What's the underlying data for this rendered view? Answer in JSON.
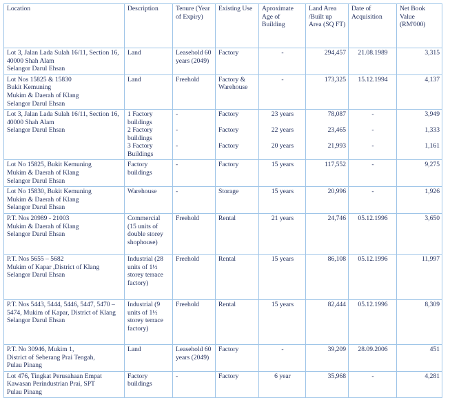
{
  "columns": [
    "Location",
    "Description",
    "Tenure (Year of Expiry)",
    "Existing Use",
    "Aproximate Age of Building",
    "Land Area /Built up Area (SQ FT)",
    "Date of Acquisition",
    "Net Book Value (RM'000)"
  ],
  "rows": [
    {
      "location": "Lot 3, Jalan Lada Sulah 16/11, Section 16, 40000 Shah Alam\nSelangor Darul Ehsan",
      "description": [
        "Land"
      ],
      "tenure": [
        "Leasehold 60 years (2049)"
      ],
      "use": [
        "Factory"
      ],
      "age": [
        "-"
      ],
      "area": [
        "294,457"
      ],
      "date": [
        "21.08.1989"
      ],
      "nbv": [
        "3,315"
      ]
    },
    {
      "location": "Lot Nos 15825 & 15830\nBukit Kemuning\nMukim & Daerah of Klang\nSelangor Darul Ehsan",
      "description": [
        "Land"
      ],
      "tenure": [
        "Freehold"
      ],
      "use": [
        "Factory & Warehouse"
      ],
      "age": [
        "-"
      ],
      "area": [
        "173,325"
      ],
      "date": [
        "15.12.1994"
      ],
      "nbv": [
        "4,137"
      ]
    },
    {
      "location": "Lot 3, Jalan Lada Sulah 16/11, Section 16, 40000 Shah Alam\nSelangor Darul Ehsan",
      "description": [
        "1 Factory buildings",
        "2 Factory buildings",
        "3 Factory Buildings"
      ],
      "tenure": [
        "-",
        "-",
        "-"
      ],
      "use": [
        "Factory",
        "Factory",
        "Factory"
      ],
      "age": [
        "23 years",
        "22 years",
        "20 years"
      ],
      "area": [
        "78,087",
        "23,465",
        "21,993"
      ],
      "date": [
        "-",
        "-",
        "-"
      ],
      "nbv": [
        "3,949",
        "1,333",
        "1,161"
      ]
    },
    {
      "location": "Lot No 15825, Bukit Kemuning\nMukim & Daerah of Klang\nSelangor Darul Ehsan",
      "description": [
        "Factory buildings"
      ],
      "tenure": [
        "-"
      ],
      "use": [
        "Factory"
      ],
      "age": [
        "15 years"
      ],
      "area": [
        "117,552"
      ],
      "date": [
        "-"
      ],
      "nbv": [
        "9,275"
      ]
    },
    {
      "location": "Lot No 15830, Bukit Kemuning\nMukim & Daerah of Klang\nSelangor Darul Ehsan",
      "description": [
        "Warehouse"
      ],
      "tenure": [
        "-"
      ],
      "use": [
        "Storage"
      ],
      "age": [
        "15 years"
      ],
      "area": [
        "20,996"
      ],
      "date": [
        "-"
      ],
      "nbv": [
        "1,926"
      ]
    },
    {
      "location": "P.T. Nos 20989 - 21003\nMukim & Daerah of Klang\nSelangor Darul Ehsan",
      "description": [
        "Commercial (15 units of double storey shophouse)"
      ],
      "tenure": [
        "Freehold"
      ],
      "use": [
        "Rental"
      ],
      "age": [
        "21 years"
      ],
      "area": [
        "24,746"
      ],
      "date": [
        "05.12.1996"
      ],
      "nbv": [
        "3,650"
      ]
    },
    {
      "location": "P.T. Nos 5655 – 5682\nMukim of Kapar ,District of Klang\nSelangor Darul Ehsan",
      "description": [
        "Industrial (28 units of 1½ storey terrace factory)"
      ],
      "tenure": [
        "Freehold"
      ],
      "use": [
        "Rental"
      ],
      "age": [
        "15 years"
      ],
      "area": [
        "86,108"
      ],
      "date": [
        "05.12.1996"
      ],
      "nbv": [
        "11,997"
      ]
    },
    {
      "location": "P.T. Nos 5443, 5444, 5446, 5447, 5470 – 5474, Mukim of Kapar, District of Klang\nSelangor Darul Ehsan",
      "description": [
        "Industrial (9 units of 1½ storey terrace factory)"
      ],
      "tenure": [
        "Freehold"
      ],
      "use": [
        "Rental"
      ],
      "age": [
        "15 years"
      ],
      "area": [
        "82,444"
      ],
      "date": [
        "05.12.1996"
      ],
      "nbv": [
        "8,309"
      ]
    },
    {
      "location": "P.T. No 30946, Mukim 1,\nDistrict of Seberang Prai Tengah,\nPulau Pinang",
      "description": [
        "Land"
      ],
      "tenure": [
        "Leasehold 60 years (2049)"
      ],
      "use": [
        "Factory"
      ],
      "age": [
        "-"
      ],
      "area": [
        "39,209"
      ],
      "date": [
        "28.09.2006"
      ],
      "nbv": [
        "451"
      ]
    },
    {
      "location": "Lot 476, Tingkat Perusahaan Empat\nKawasan Perindustrian Prai, SPT\nPulau Pinang",
      "description": [
        "Factory buildings"
      ],
      "tenure": [
        "-"
      ],
      "use": [
        "Factory"
      ],
      "age": [
        "6 year"
      ],
      "area": [
        "35,968"
      ],
      "date": [
        "-"
      ],
      "nbv": [
        "4,281"
      ]
    }
  ],
  "colors": {
    "text": "#1f2d5c",
    "border": "#9fc5e8"
  }
}
